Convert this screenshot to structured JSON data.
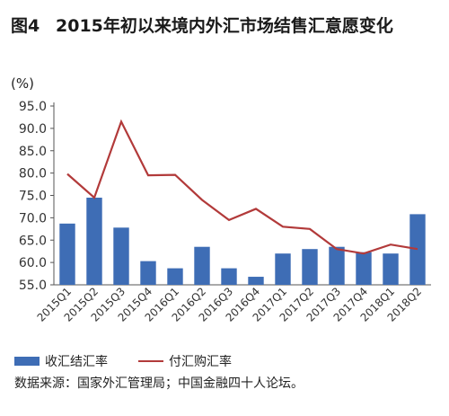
{
  "figure": {
    "label": "图4",
    "title": "2015年初以来境内外汇市场结售汇意愿变化",
    "unit": "(%)",
    "source": "数据来源：国家外汇管理局；中国金融四十人论坛。"
  },
  "chart_data": {
    "type": "bar",
    "categories": [
      "2015Q1",
      "2015Q2",
      "2015Q3",
      "2015Q4",
      "2016Q1",
      "2016Q2",
      "2016Q3",
      "2016Q4",
      "2017Q1",
      "2017Q2",
      "2017Q3",
      "2017Q4",
      "2018Q1",
      "2018Q2"
    ],
    "series": [
      {
        "name": "收汇结汇率",
        "type": "bar",
        "color": "#3e6db5",
        "values": [
          68.7,
          74.5,
          67.8,
          60.3,
          58.7,
          63.5,
          58.7,
          56.8,
          62.0,
          63.0,
          63.5,
          62.3,
          62.0,
          70.8
        ]
      },
      {
        "name": "付汇购汇率",
        "type": "line",
        "color": "#b23a3a",
        "values": [
          79.8,
          74.5,
          91.5,
          79.5,
          79.6,
          74.0,
          69.5,
          72.0,
          68.0,
          67.5,
          63.0,
          62.0,
          64.0,
          63.0
        ]
      }
    ],
    "yticks": [
      "55.0",
      "60.0",
      "65.0",
      "70.0",
      "75.0",
      "80.0",
      "85.0",
      "90.0",
      "95.0"
    ],
    "ylim": [
      55,
      95
    ],
    "grid": false,
    "legend": "bottom-left"
  }
}
